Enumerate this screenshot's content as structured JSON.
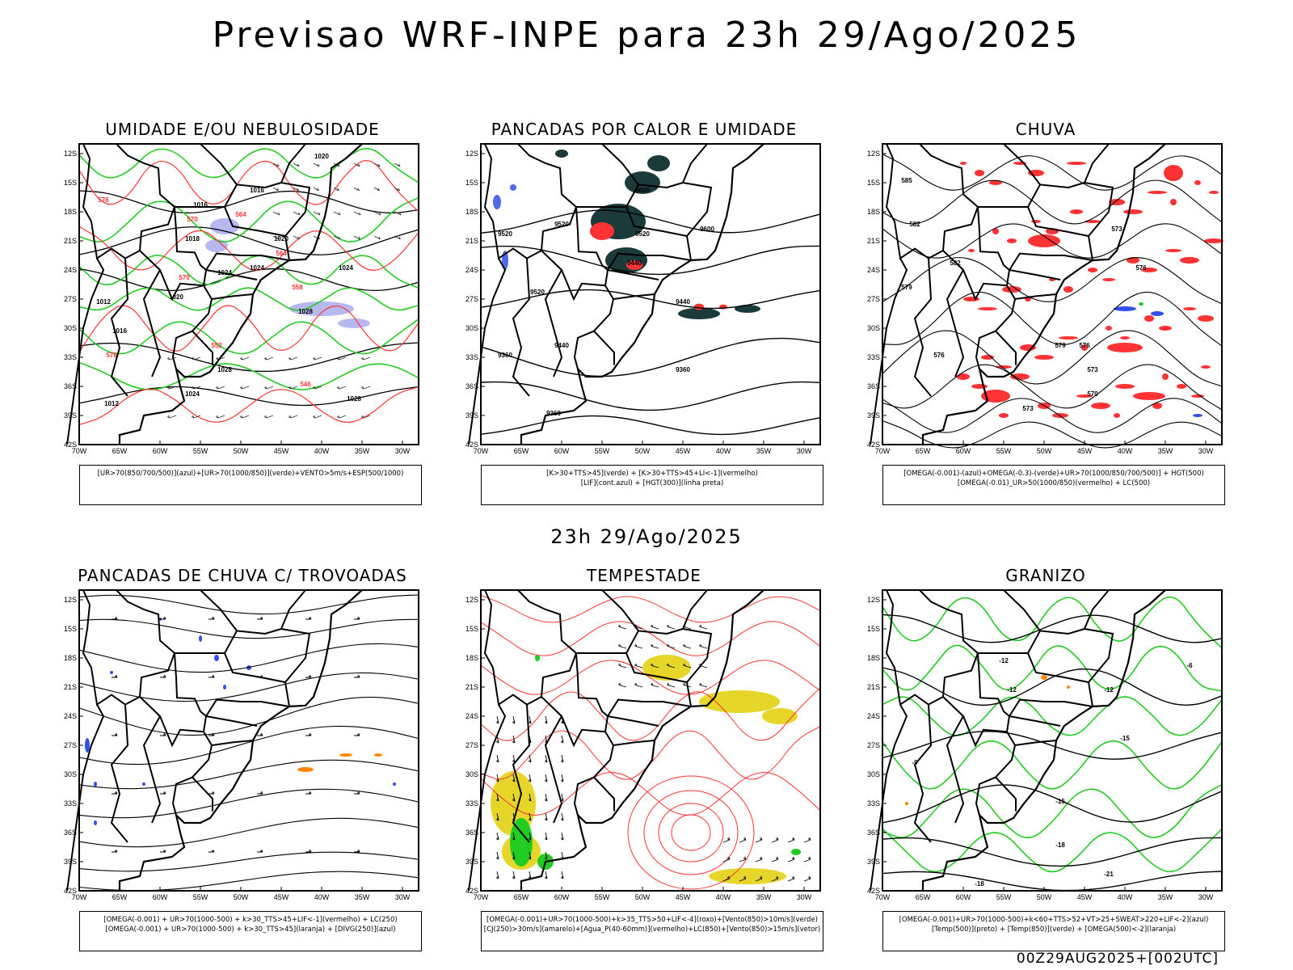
{
  "title": "Previsao WRF-INPE  para 23h 29/Ago/2025",
  "subtitle": "23h 29/Ago/2025",
  "footer": "00Z29AUG2025+[002UTC]",
  "axes": {
    "lat_labels": [
      "12S",
      "15S",
      "18S",
      "21S",
      "24S",
      "27S",
      "30S",
      "33S",
      "36S",
      "39S",
      "42S"
    ],
    "lon_labels": [
      "70W",
      "65W",
      "60W",
      "55W",
      "50W",
      "45W",
      "40W",
      "35W",
      "30W"
    ]
  },
  "colors": {
    "blue": "#3050e8",
    "green": "#22cc22",
    "red": "#ff3333",
    "orange": "#ff8800",
    "yellow": "#e6d62a",
    "dark": "#1b3a3a",
    "lavender": "#b0b0f0",
    "line": "#000000"
  },
  "panels": [
    {
      "title": "UMIDADE E/OU NEBULOSIDADE",
      "legend": [
        "[UR>70(850/700/500)](azul)+[UR>70(1000/850)](verde)+VENTO>5m/s+ESP(500/1000)"
      ]
    },
    {
      "title": "PANCADAS POR CALOR E UMIDADE",
      "legend": [
        "[K>30+TTS>45](verde) + [K>30+TTS>45+LI<-1](vermelho)",
        "[LIF](cont.azul) + [HGT(300)](linha preta)"
      ]
    },
    {
      "title": "CHUVA",
      "legend": [
        "[OMEGA(-0.001)-(azul)+OMEGA(-0.3)-(verde)+UR>70(1000/850/700/500)] + HGT(500)",
        "[OMEGA(-0.01)_UR>50(1000/850)(vermelho) + LC(500)"
      ]
    },
    {
      "title": "PANCADAS DE CHUVA C/ TROVOADAS",
      "legend": [
        "[OMEGA(-0.001) + UR>70(1000-500) + k>30_TTS>45+LIF<-1](vermelho) + LC(250)",
        "[OMEGA(-0.001) + UR>70(1000-500) + k>30_TTS>45](laranja) + [DIVG(250)](azul)"
      ]
    },
    {
      "title": "TEMPESTADE",
      "legend": [
        "[OMEGA(-0.001)+UR>70(1000-500)+k>35_TTS>50+LIF<-4](roxo)+[Vento(850)>10m/s](verde)",
        "[CJ(250)>30m/s](amarelo)+[Agua_P(40-60mm)](vermelho)+LC(850)+[Vento(850)>15m/s](vetor)"
      ]
    },
    {
      "title": "GRANIZO",
      "legend": [
        "[OMEGA(-0.001)+UR>70(1000-500)+k<60+TTS>52+VT>25+SWEAT>220+LIF<-2](azul)",
        "[Temp(500)](preto) + [Temp(850)](verde) + [OMEGA(500)<-2](laranja)"
      ]
    }
  ],
  "contour_labels": {
    "p1": [
      "1020",
      "1016",
      "1016",
      "1018",
      "1020",
      "1024",
      "1024",
      "1020",
      "1016",
      "1012",
      "1012",
      "1028",
      "1024",
      "1028",
      "1024",
      "1028",
      "570",
      "576",
      "564",
      "564",
      "552",
      "546",
      "558",
      "570",
      "576"
    ],
    "p2": [
      "9600",
      "9520",
      "9600",
      "9520",
      "9440",
      "9520",
      "9440",
      "9520",
      "9440",
      "9360",
      "9360",
      "9360"
    ],
    "p3": [
      "585",
      "582",
      "579",
      "576",
      "582",
      "579",
      "576",
      "573",
      "570",
      "573",
      "576",
      "573"
    ],
    "p6": [
      "-12",
      "-12",
      "-12",
      "-15",
      "-15",
      "-18",
      "-21",
      "-18",
      "-9",
      "-6"
    ]
  }
}
